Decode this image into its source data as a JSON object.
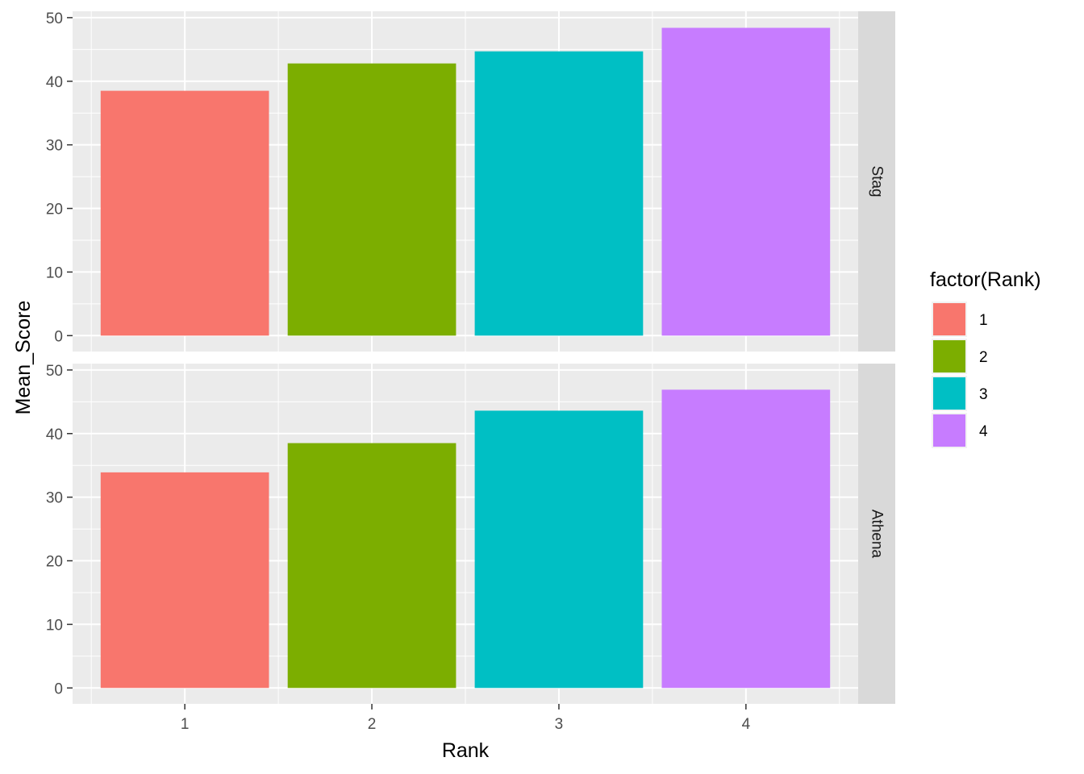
{
  "chart_data": {
    "type": "bar",
    "xlabel": "Rank",
    "ylabel": "Mean_Score",
    "categories": [
      "1",
      "2",
      "3",
      "4"
    ],
    "ylim": [
      -2.5,
      51
    ],
    "yticks": [
      0,
      10,
      20,
      30,
      40,
      50
    ],
    "grid": true,
    "legend": {
      "title": "factor(Rank)",
      "position": "right",
      "entries": [
        {
          "label": "1",
          "color": "#F8766D"
        },
        {
          "label": "2",
          "color": "#7CAE00"
        },
        {
          "label": "3",
          "color": "#00BFC4"
        },
        {
          "label": "4",
          "color": "#C77CFF"
        }
      ]
    },
    "facets": [
      {
        "label": "Stag",
        "values": [
          38.5,
          42.8,
          44.7,
          48.4
        ]
      },
      {
        "label": "Athena",
        "values": [
          33.9,
          38.5,
          43.6,
          46.9
        ]
      }
    ],
    "colors": {
      "panel_bg": "#EBEBEB",
      "grid_major": "#FFFFFF",
      "strip_bg": "#D9D9D9",
      "tick": "#333333"
    }
  }
}
